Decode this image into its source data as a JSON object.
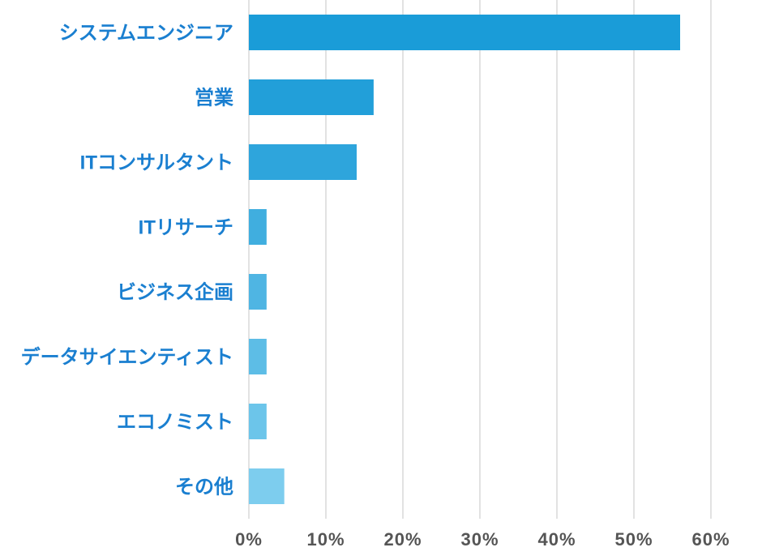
{
  "chart_data": {
    "type": "barh",
    "categories": [
      "システムエンジニア",
      "営業",
      "ITコンサルタント",
      "ITリサーチ",
      "ビジネス企画",
      "データサイエンティスト",
      "エコノミスト",
      "その他"
    ],
    "values": [
      56,
      16.2,
      14,
      2.3,
      2.3,
      2.3,
      2.3,
      4.6
    ],
    "colors": [
      "#1a9cd8",
      "#229fd9",
      "#2ea5dc",
      "#40aedf",
      "#4fb5e3",
      "#5dbde6",
      "#6cc5ea",
      "#7dcdee"
    ],
    "xlim": [
      0,
      60
    ],
    "xticks": [
      {
        "value": 0,
        "label": "0%"
      },
      {
        "value": 10,
        "label": "10%"
      },
      {
        "value": 20,
        "label": "20%"
      },
      {
        "value": 30,
        "label": "30%"
      },
      {
        "value": 40,
        "label": "40%"
      },
      {
        "value": 50,
        "label": "50%"
      },
      {
        "value": 60,
        "label": "60%"
      }
    ],
    "grid": true
  }
}
